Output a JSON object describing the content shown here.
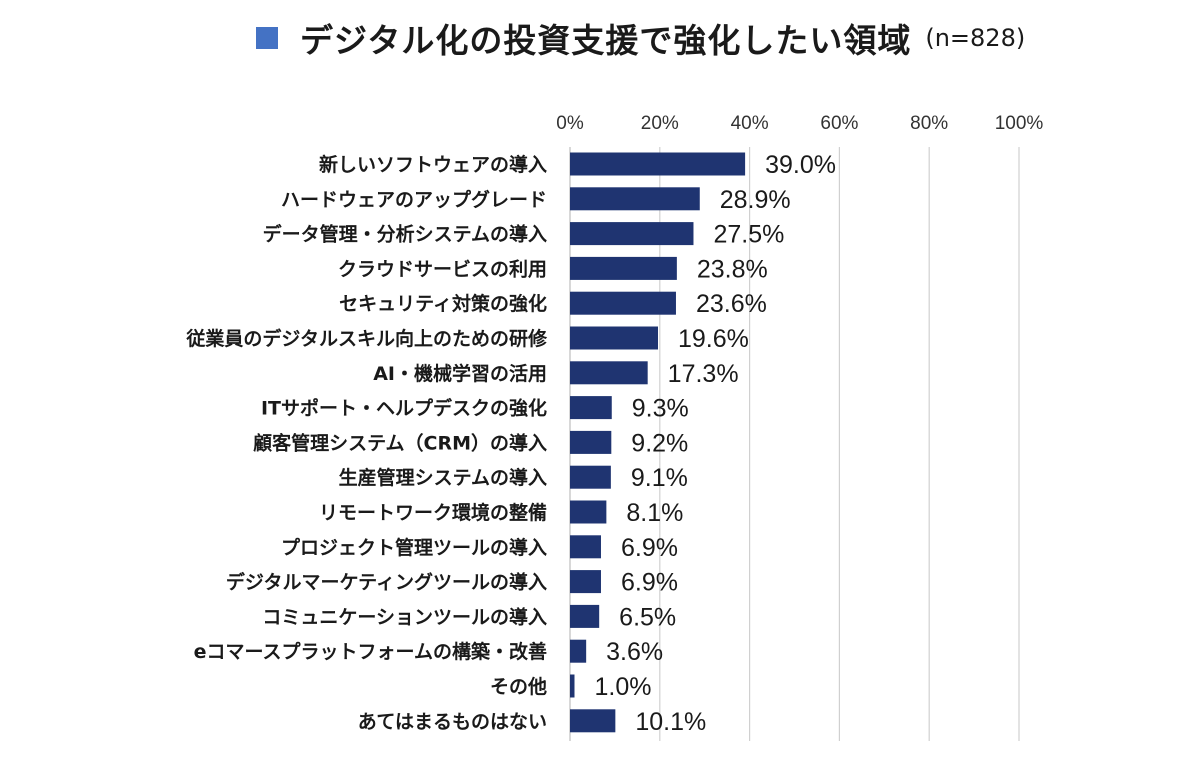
{
  "title": {
    "text": "デジタル化の投資支援で強化したい領域",
    "sample": "(n=828)",
    "marker_color": "#4472C4"
  },
  "chart_data": {
    "type": "bar",
    "orientation": "horizontal",
    "title": "デジタル化の投資支援で強化したい領域",
    "subtitle": "(n=828)",
    "categories": [
      "新しいソフトウェアの導入",
      "ハードウェアのアップグレード",
      "データ管理・分析システムの導入",
      "クラウドサービスの利用",
      "セキュリティ対策の強化",
      "従業員のデジタルスキル向上のための研修",
      "AI・機械学習の活用",
      "ITサポート・ヘルプデスクの強化",
      "顧客管理システム（CRM）の導入",
      "生産管理システムの導入",
      "リモートワーク環境の整備",
      "プロジェクト管理ツールの導入",
      "デジタルマーケティングツールの導入",
      "コミュニケーションツールの導入",
      "eコマースプラットフォームの構築・改善",
      "その他",
      "あてはまるものはない"
    ],
    "values": [
      39.0,
      28.9,
      27.5,
      23.8,
      23.6,
      19.6,
      17.3,
      9.3,
      9.2,
      9.1,
      8.1,
      6.9,
      6.9,
      6.5,
      3.6,
      1.0,
      10.1
    ],
    "value_labels": [
      "39.0%",
      "28.9%",
      "27.5%",
      "23.8%",
      "23.6%",
      "19.6%",
      "17.3%",
      "9.3%",
      "9.2%",
      "9.1%",
      "8.1%",
      "6.9%",
      "6.9%",
      "6.5%",
      "3.6%",
      "1.0%",
      "10.1%"
    ],
    "xlim": [
      0,
      100
    ],
    "ticks": [
      0,
      20,
      40,
      60,
      80,
      100
    ],
    "tick_labels": [
      "0%",
      "20%",
      "40%",
      "60%",
      "80%",
      "100%"
    ],
    "xlabel": "",
    "ylabel": "",
    "grid": true,
    "x_axis_position": "top",
    "legend": "none",
    "bar_color": "#1F3471",
    "grid_color": "#D0D0D0"
  }
}
